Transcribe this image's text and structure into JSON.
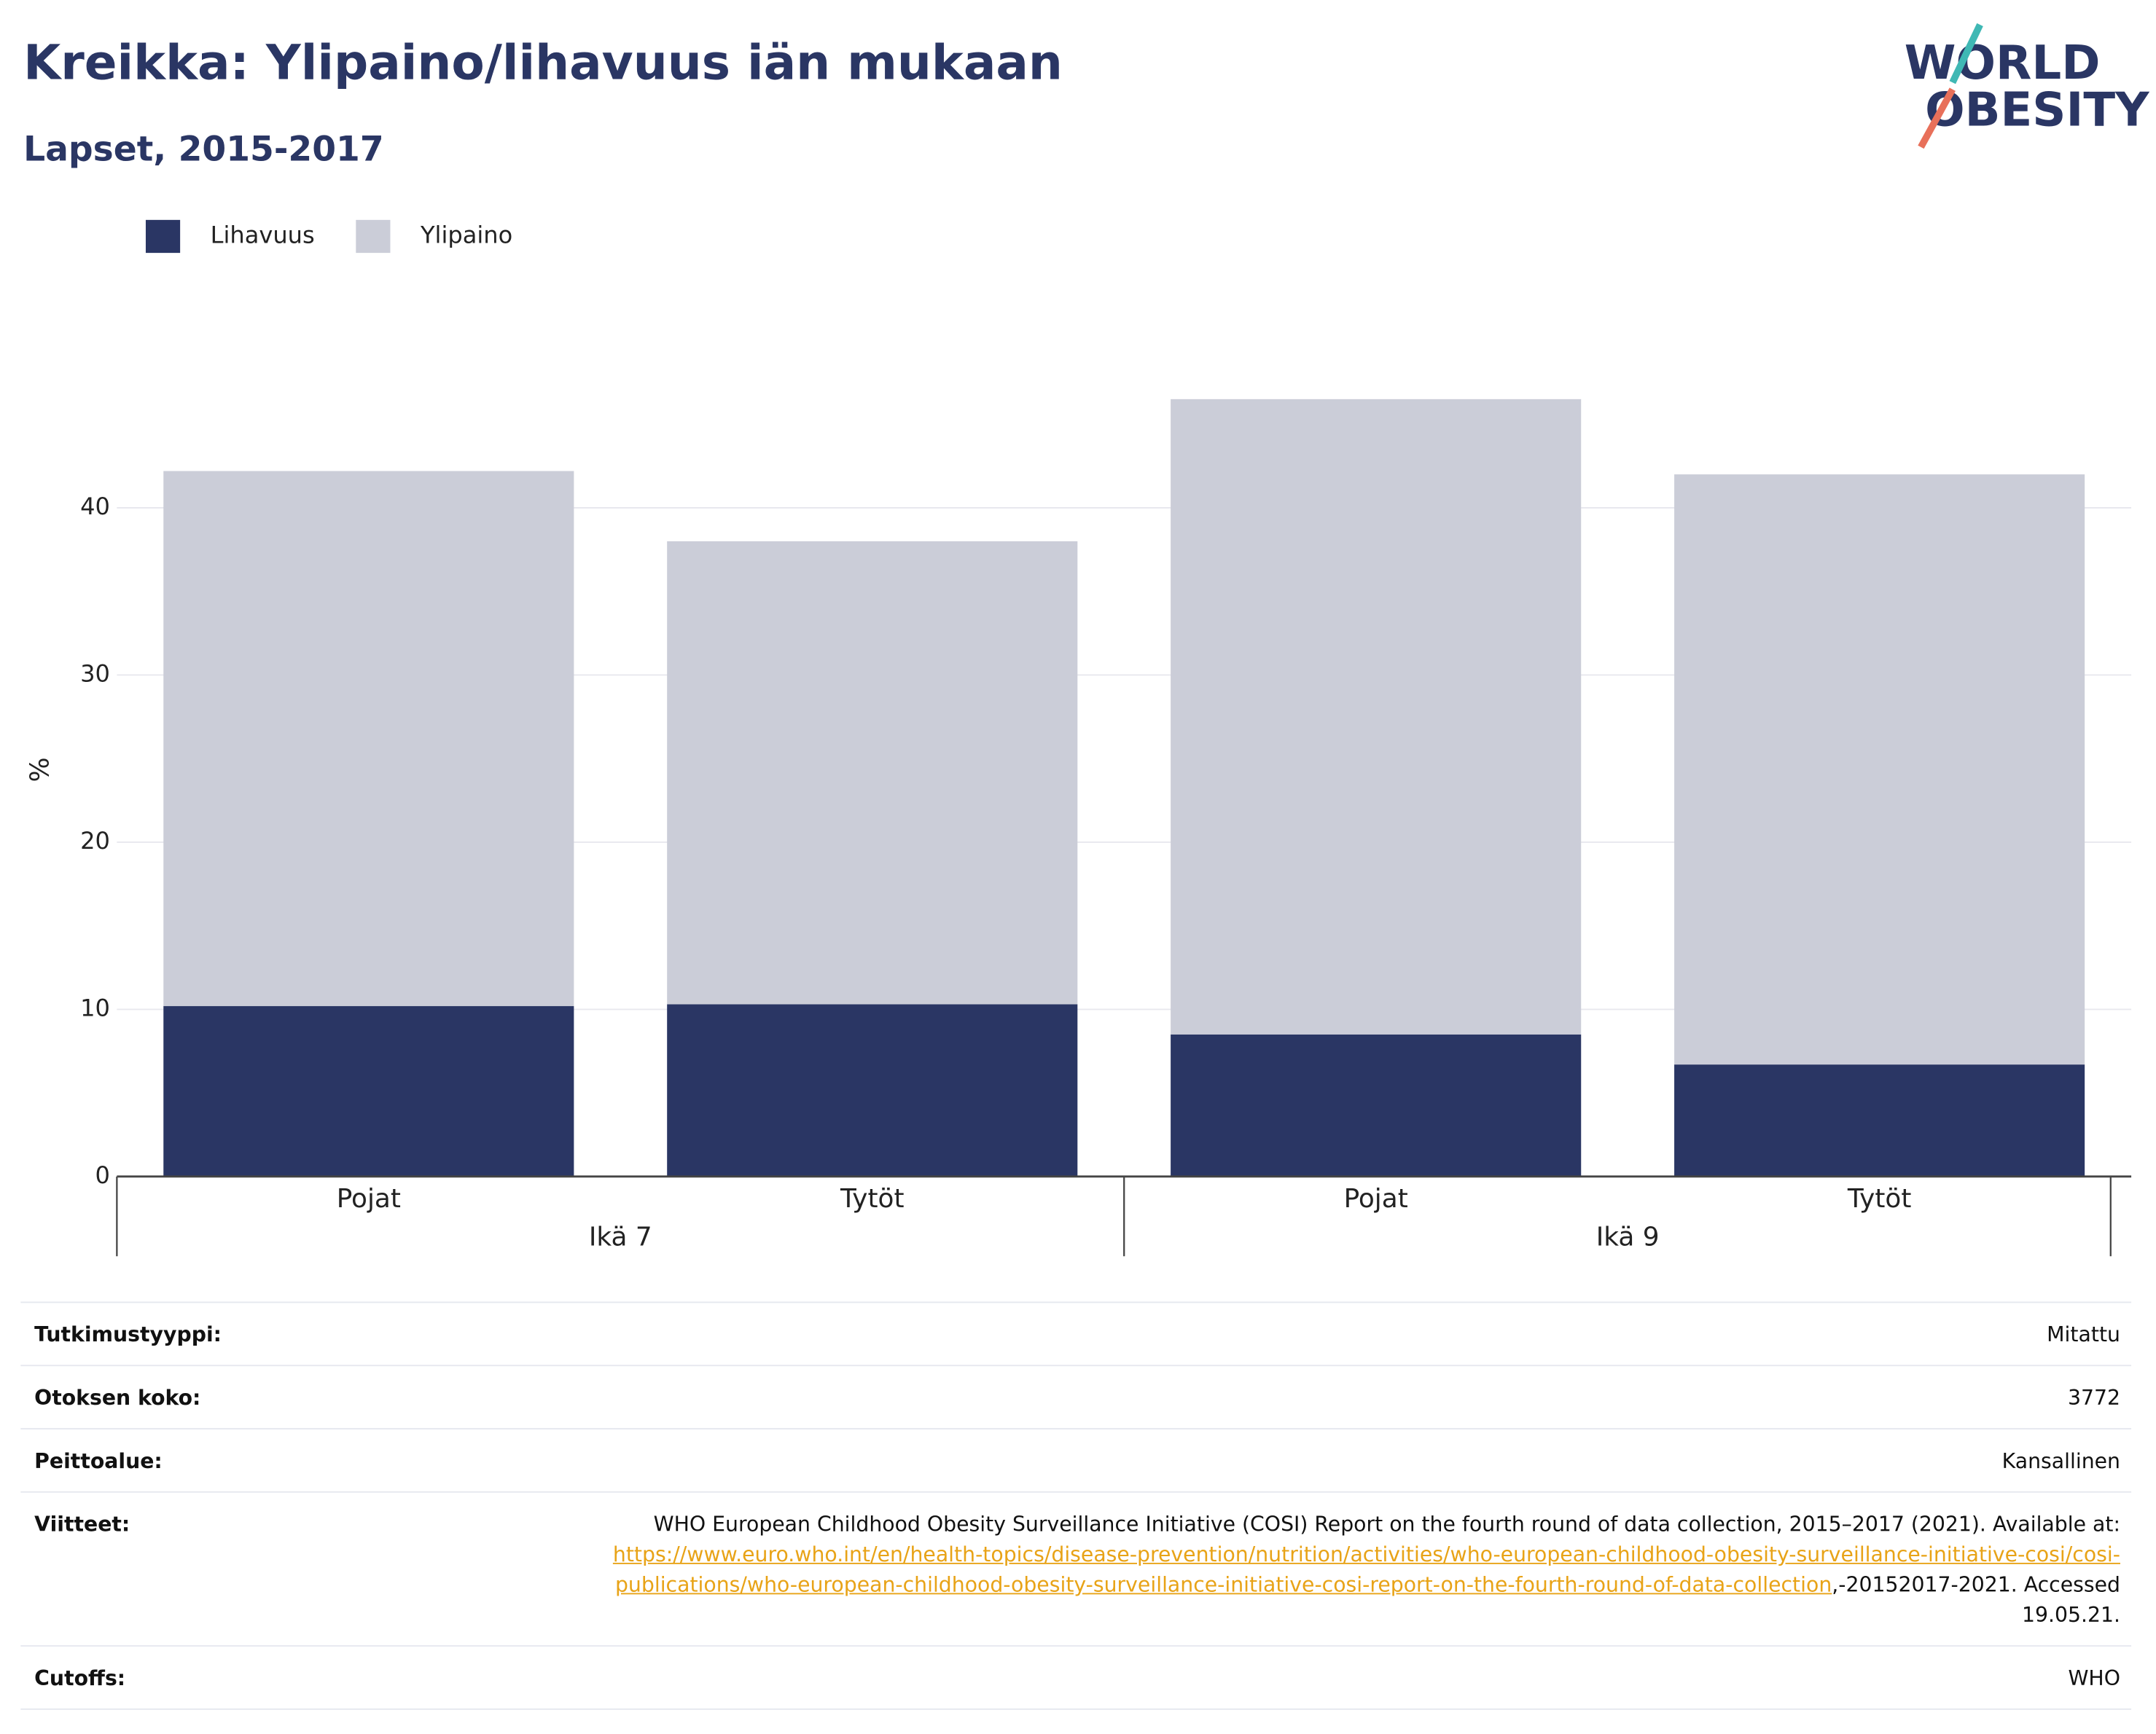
{
  "chart_data": {
    "type": "stacked_bar",
    "title": "Kreikka: Ylipaino/lihavuus iän mukaan",
    "subtitle": "Lapset, 2015-2017",
    "y_label": "%",
    "categories": [
      "Pojat",
      "Tytöt",
      "Pojat",
      "Tytöt"
    ],
    "groups": [
      "Ikä 7",
      "Ikä 9"
    ],
    "series": [
      {
        "name": "Lihavuus",
        "color": "#2a3664",
        "values": [
          10.2,
          10.3,
          8.5,
          6.7
        ]
      },
      {
        "name": "Ylipaino",
        "color": "#cbcdd8",
        "values": [
          32.0,
          27.7,
          38.0,
          35.3
        ]
      }
    ],
    "ylim": [
      0,
      49
    ],
    "yticks": [
      0,
      10,
      20,
      30,
      40
    ],
    "grid": true,
    "legend": "top-left"
  },
  "logo": [
    "WORLD",
    "OBESITY"
  ],
  "table": {
    "rows": [
      {
        "label": "Tutkimustyyppi:",
        "value": "Mitattu"
      },
      {
        "label": "Otoksen koko:",
        "value": "3772"
      },
      {
        "label": "Peittoalue:",
        "value": "Kansallinen"
      },
      {
        "label": "Viitteet:",
        "value": "WHO European Childhood Obesity Surveillance Initiative (COSI) Report on the fourth round of data collection, 2015–2017 (2021). Available at: ",
        "link": "https://www.euro.who.int/en/health-topics/disease-prevention/nutrition/activities/who-european-childhood-obesity-surveillance-initiative-cosi/cosi-publications/who-european-childhood-obesity-surveillance-initiative-cosi-report-on-the-fourth-round-of-data-collection",
        "after": ",-20152017-2021. Accessed 19.05.21."
      },
      {
        "label": "Cutoffs:",
        "value": "WHO"
      }
    ]
  }
}
